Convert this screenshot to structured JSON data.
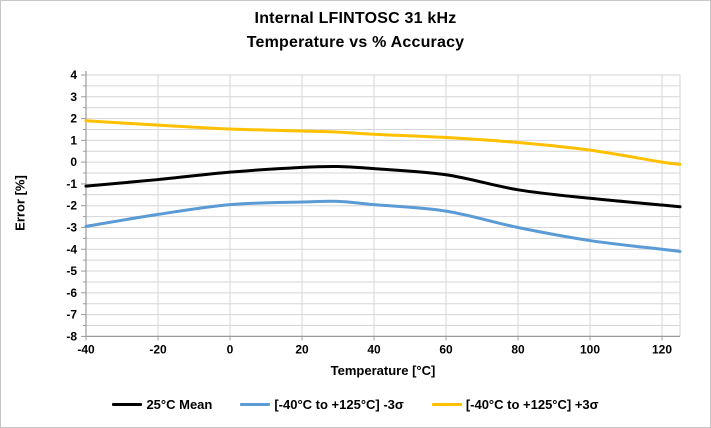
{
  "title": {
    "line1": "Internal LFINTOSC  31 kHz",
    "line2": "Temperature vs % Accuracy"
  },
  "chart_data": {
    "type": "line",
    "title": "Internal LFINTOSC 31 kHz - Temperature vs % Accuracy",
    "xlabel": "Temperature [°C]",
    "ylabel": "Error [%]",
    "xlim": [
      -40,
      125
    ],
    "ylim": [
      -8,
      4
    ],
    "x_tick_labels": [
      -40,
      -20,
      0,
      20,
      40,
      60,
      80,
      100,
      120
    ],
    "y_tick_labels": [
      4,
      3,
      2,
      1,
      0,
      -1,
      -2,
      -3,
      -4,
      -5,
      -6,
      -7,
      -8
    ],
    "grid": {
      "horizontal_minor_step": 0.5,
      "vertical_step": 20,
      "visible": true
    },
    "legend_position": "bottom",
    "x": [
      -40,
      -20,
      0,
      20,
      30,
      40,
      60,
      80,
      100,
      120,
      125
    ],
    "series": [
      {
        "name": "25°C Mean",
        "color": "#000000",
        "values": [
          -1.1,
          -0.8,
          -0.46,
          -0.24,
          -0.2,
          -0.3,
          -0.58,
          -1.27,
          -1.66,
          -1.97,
          -2.05
        ]
      },
      {
        "name": "[-40°C to +125°C]  -3σ",
        "color": "#5B9BD5",
        "values": [
          -2.95,
          -2.4,
          -1.95,
          -1.83,
          -1.8,
          -1.95,
          -2.25,
          -3.0,
          -3.6,
          -4.0,
          -4.1
        ]
      },
      {
        "name": "[-40°C to +125°C] +3σ",
        "color": "#FFC000",
        "values": [
          1.9,
          1.7,
          1.52,
          1.43,
          1.38,
          1.28,
          1.13,
          0.9,
          0.55,
          0.0,
          -0.1
        ]
      }
    ]
  },
  "legend": {
    "items": [
      {
        "label": "25°C Mean",
        "color": "#000000"
      },
      {
        "label": "[-40°C to +125°C]  -3σ",
        "color": "#5B9BD5"
      },
      {
        "label": "[-40°C to +125°C] +3σ",
        "color": "#FFC000"
      }
    ]
  },
  "style": {
    "gridline_color": "#d6d6d6",
    "axis_color": "#9b9b9b",
    "tick_label_color": "#000000"
  }
}
